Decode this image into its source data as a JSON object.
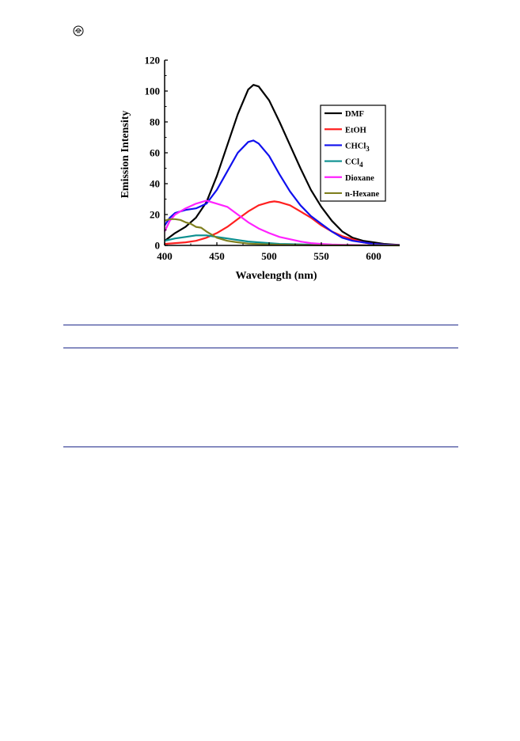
{
  "chart_data": {
    "type": "line",
    "xlabel": "Wavelength (nm)",
    "ylabel": "Emission Intensity",
    "xlim": [
      400,
      625
    ],
    "ylim": [
      0,
      120
    ],
    "xticks": [
      "400",
      "450",
      "500",
      "550",
      "600"
    ],
    "yticks": [
      "0",
      "20",
      "40",
      "60",
      "80",
      "100",
      "120"
    ],
    "legend_position": "top-right",
    "series": [
      {
        "name": "DMF",
        "name_main": "DMF",
        "name_sub": "",
        "color": "#000000",
        "x": [
          400,
          410,
          420,
          430,
          440,
          450,
          460,
          470,
          480,
          485,
          490,
          500,
          510,
          520,
          530,
          540,
          550,
          560,
          570,
          580,
          590,
          600,
          610,
          620,
          625
        ],
        "y": [
          3,
          8,
          12,
          18,
          28,
          45,
          65,
          85,
          101,
          104,
          103,
          94,
          80,
          65,
          50,
          36,
          25,
          16,
          9,
          5,
          3,
          2,
          1,
          0.5,
          0.3
        ]
      },
      {
        "name": "EtOH",
        "name_main": "EtOH",
        "name_sub": "",
        "color": "#ff2020",
        "x": [
          400,
          410,
          420,
          430,
          440,
          450,
          460,
          470,
          480,
          490,
          500,
          505,
          510,
          520,
          530,
          540,
          550,
          560,
          570,
          580,
          590,
          600,
          610,
          620,
          625
        ],
        "y": [
          1,
          1.5,
          2,
          3,
          5,
          8,
          12,
          17,
          22,
          26,
          28,
          28.5,
          28,
          26,
          22,
          18,
          13,
          9,
          6,
          4,
          2,
          1,
          0.5,
          0.3,
          0.2
        ]
      },
      {
        "name": "CHCl3",
        "name_main": "CHCl",
        "name_sub": "3",
        "color": "#1010ee",
        "x": [
          400,
          405,
          410,
          420,
          430,
          440,
          450,
          460,
          470,
          480,
          485,
          490,
          500,
          510,
          520,
          530,
          540,
          550,
          560,
          570,
          580,
          590,
          600,
          610,
          625
        ],
        "y": [
          13,
          18,
          21,
          23,
          24,
          27,
          36,
          48,
          60,
          67,
          68,
          66,
          58,
          46,
          35,
          26,
          19,
          14,
          9,
          5,
          3,
          2,
          1,
          0.5,
          0.2
        ]
      },
      {
        "name": "CCl4",
        "name_main": "CCl",
        "name_sub": "4",
        "color": "#0a8f8f",
        "x": [
          400,
          410,
          420,
          430,
          440,
          450,
          460,
          470,
          480,
          490,
          500,
          510,
          520,
          540,
          560,
          580,
          600,
          625
        ],
        "y": [
          3,
          4.5,
          5.5,
          6.5,
          6.5,
          5.5,
          4.5,
          3.5,
          2.5,
          2,
          1.5,
          1,
          0.8,
          0.5,
          0.3,
          0.2,
          0.1,
          0.1
        ]
      },
      {
        "name": "Dioxane",
        "name_main": "Dioxane",
        "name_sub": "",
        "color": "#ff22ff",
        "x": [
          400,
          405,
          410,
          420,
          430,
          440,
          450,
          460,
          470,
          480,
          490,
          500,
          510,
          520,
          530,
          540,
          550,
          560,
          570,
          580,
          590,
          600,
          610,
          625
        ],
        "y": [
          9,
          16,
          20,
          24,
          27,
          29,
          27,
          25,
          20,
          15,
          11,
          8,
          5.5,
          4,
          2.5,
          1.5,
          1,
          0.6,
          0.4,
          0.3,
          0.2,
          0.1,
          0.1,
          0.05
        ]
      },
      {
        "name": "n-Hexane",
        "name_main": "n-Hexane",
        "name_sub": "",
        "color": "#808020",
        "x": [
          400,
          405,
          410,
          415,
          420,
          425,
          430,
          435,
          440,
          450,
          460,
          470,
          480,
          500,
          520,
          550,
          600,
          625
        ],
        "y": [
          16,
          17,
          17,
          16.5,
          15,
          14,
          12,
          11.5,
          9,
          5,
          3,
          2,
          1.2,
          0.6,
          0.3,
          0.1,
          0.05,
          0.02
        ]
      }
    ]
  }
}
